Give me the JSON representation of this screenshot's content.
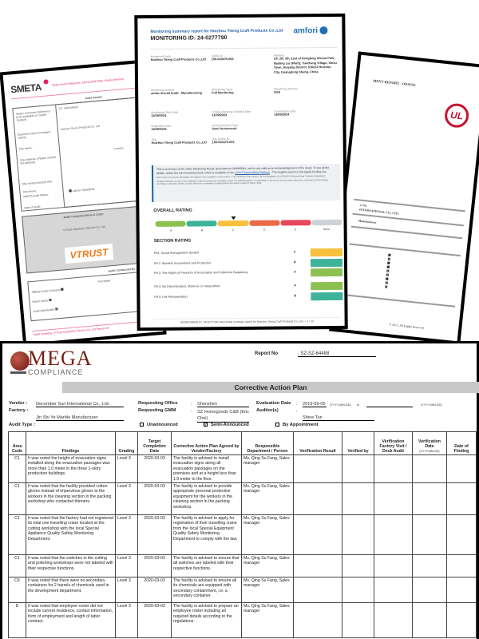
{
  "smeta": {
    "logo": "SMETA",
    "header_text": "Sedex Audit Reference: ZAA1234567890 | Sedex Member",
    "audit_details": "Audit Details",
    "fields": [
      "Sedex Company Reference (only available on Sedex System)",
      "Business name (Company name):",
      "Site name:",
      "Site address: (Please include full address)",
      "Site contact and job title:",
      "Site phone:",
      "SMETA Audit Pillars:",
      "Date of Audit:"
    ],
    "company_ref": "ZC: 406109693",
    "business_name": "Xiamen Stone Products Co. Ltd",
    "country_label": "Country:",
    "pillar": "Labour Standards",
    "audit_company_title": "Audit Company Name & Logo:",
    "audit_company_name": "V-Trust Inspection Service Co. Ltd",
    "audit_company_logo": "VTRUST",
    "audit_conducted": "Audit Conducted By",
    "conducted_rows": [
      "Affiliate Audit Company",
      "Brand owner",
      "Audit stakeholder"
    ],
    "purchaser": "Purchaser",
    "footer": "Audit company: V-Trust Inspection Service Co. Ltd   Report ref"
  },
  "ul": {
    "title": "MENT REPORT - ONSITE",
    "logo": "UL",
    "line1": "s, Inc.",
    "line2": "INTERNATIONAL CO., LTD.",
    "line3": "Manufacturer",
    "checklist": [
      true,
      false,
      true,
      true,
      false,
      false,
      true,
      false,
      false
    ],
    "copyright": "© 2015. All Rights Reserved"
  },
  "amfori": {
    "title": "Monitoring summary report for Huizhou Yiteng Craft Products Co.,Ltd",
    "monitoring_id": "MONITORING ID: 24-0277790",
    "logo": "amfori",
    "fields": [
      {
        "label": "Monitored Party",
        "value": "Huizhou Yiteng Craft Products Co.,Ltd"
      },
      {
        "label": "amfori ID",
        "value": "156-030475-000"
      },
      {
        "label": "Address",
        "value": "1/F, 2/F, 3/F, East of Rongfeng Zhixun Park, Nanling Lei (Plant), Yuechang Village, Xinxu Town, Huiyang District, 516223 Huizhou City, Guangdong Sheng, China"
      },
      {
        "label": "Monitoring Activity",
        "value": "amfori Social Audit - Manufacturing"
      },
      {
        "label": "Monitoring Type",
        "value": "Full Monitoring"
      },
      {
        "label": "Monitoring Partner",
        "value": "SGS"
      },
      {
        "label": "Monitoring Start Date",
        "value": "11/09/2024"
      },
      {
        "label": "Closing Meeting Finished Date",
        "value": "11/09/2024"
      },
      {
        "label": "Submission Date",
        "value": "18/09/2024"
      },
      {
        "label": "Expiration Date",
        "value": "18/09/2025"
      },
      {
        "label": "Announcement Type",
        "value": "Semi Announced"
      },
      {
        "label": "Site",
        "value": "Huizhou Yiteng Craft Products Co.,Ltd"
      },
      {
        "label": "Site amfori ID",
        "value": "156-030475-002"
      }
    ],
    "info_text": "This is an extract of the online Monitoring Result, generated on 20/09/2024, and is only valid as an acknowledgement of the result. To see all the details, review the full monitoring result, which is available on the",
    "info_link": "amfori Sustainability Platform",
    "info_text2": "- The English version is the legally binding one.",
    "disclaimer1": "amfori does not assume any liability with regard to the compliance of this extract, or any versions of this extract, with the Regulation (EU) 2016/679 (General Data Protection Regulation).",
    "disclaimer2": "All rights reserved. No part of this publication may be reproduced, translated, stored in a retrieval system, or transmitted, in any form or by any means electronic, mechanical, photocopying, recording or otherwise, be lent, re-sold, hired out or otherwise circulated without the amfori consent © amfori, 2024",
    "overall_rating_title": "OVERALL RATING",
    "rating_scale": [
      {
        "label": "A",
        "color": "#8cc152"
      },
      {
        "label": "B",
        "color": "#3fb39a"
      },
      {
        "label": "C",
        "color": "#f8c03c"
      },
      {
        "label": "D",
        "color": "#ed6a47"
      },
      {
        "label": "E",
        "color": "#e8485c"
      },
      {
        "label": "None",
        "color": "#cfd3d8"
      }
    ],
    "overall_rating": "C",
    "section_rating_title": "SECTION RATING",
    "sections": [
      {
        "name": "PA1: Social Management System",
        "grade": "C",
        "color": "#f8c03c"
      },
      {
        "name": "PA 2: Workers Involvement and Protection",
        "grade": "B",
        "color": "#3fb39a"
      },
      {
        "name": "PA 3: The Rights of Freedom of Association and Collective Bargaining",
        "grade": "A",
        "color": "#8cc152"
      },
      {
        "name": "PA 4: No Discrimination, Violence or Harassment",
        "grade": "A",
        "color": "#8cc152"
      },
      {
        "name": "PA 5: Fair Remuneration",
        "grade": "B",
        "color": "#3fb39a"
      }
    ],
    "footer": "MONITORING ID: 24-0277790  |  Monitoring summary report for Huizhou Yiteng Craft Products Co.,Ltd  —  1 / 13"
  },
  "omega": {
    "logo_main": "MEGA",
    "logo_sub": "COMPLIANCE",
    "report_no_label": "Report No",
    "report_no": ": SZ-SZ-64488",
    "title": "Corrective Action Plan",
    "vendor_label": "Vendor :",
    "vendor": "December Sun International Co., Ltd.",
    "factory_label": "Factory :",
    "factory": "Jin Shi Ye Marble Manufacturer",
    "audit_type_label": "Audit Type :",
    "req_office_label": "Requesting Office",
    "req_office": "Shenzhen",
    "req_gmm_label": "Requesting GMM",
    "req_gmm": "SZ Homegoods C&B (Eric Choi)",
    "eval_date_label": "Evaluation Date",
    "eval_date": "2019-09-05",
    "date_format": "(YYYY-MM-DD)",
    "to": "to",
    "auditors_label": "Auditor(s)",
    "auditors": "Shine Tan",
    "audit_types": [
      {
        "label": "Unannounced",
        "checked": false
      },
      {
        "label": "Semi-Announced",
        "checked": true
      },
      {
        "label": "By Appointment",
        "checked": false
      }
    ],
    "columns": [
      "Area Code",
      "Findings",
      "Grading",
      "Target Completion Date",
      "Corrective Action Plan Agreed by Vendor/Factory",
      "Responsible Department / Person",
      "Verification Result",
      "Verified by",
      "Verification Factory Visit / Desk Audit",
      "Verification Date",
      "Date of Finding"
    ],
    "verification_date_unit": "(YYYY-MM-DD)",
    "rows": [
      {
        "area": "C1",
        "finding": "It was noted the height of evacuation signs installed along the evacuation passages was more than 1.0 meter in the three 1-story production buildings.",
        "grading": "Level 3",
        "target": "2020-03-03",
        "cap": "The facility is advised to install evacuation signs along all evacuation passages on the premises and at a height less than 1.0 meter to the floor.",
        "responsible": "Ms. Qing Su Fang, Sales manager"
      },
      {
        "area": "C1",
        "finding": "It was noted that the facility provided cotton gloves instead of impervious gloves to the workers in the cleaning section in the packing workshop who contacted thinners.",
        "grading": "Level 3",
        "target": "2020-03-03",
        "cap": "The facility is advised to provide appropriate personal protective equipment for the workers in the cleaning section in the packing workshop.",
        "responsible": "Ms. Qing Su Fang, Sales manager"
      },
      {
        "area": "C1",
        "finding": "It was noted that the factory had not registered its total one travelling crane located at the cutting workshop with the local Special Appliance Quality Safety Monitoring Department.",
        "grading": "Level 3",
        "target": "2020-03-03",
        "cap": "The facility is advised to apply for registration of their travelling crane from the local Special Equipment Quality Safety Monitoring Department to comply with the law.",
        "responsible": "Ms. Qing Su Fang, Sales manager"
      },
      {
        "area": "C1",
        "finding": "It was noted that the switches in the cutting and polishing workshops were not labeled with their respective functions.",
        "grading": "Level 3",
        "target": "2020-03-03",
        "cap": "The facility is advised to ensure that all switches are labeled with their respective functions.",
        "responsible": "Ms. Qing Su Fang, Sales manager"
      },
      {
        "area": "C6",
        "finding": "It was noted that there were no secondary containers for 2 barrels of chemicals used in the development department.",
        "grading": "Level 3",
        "target": "2020-03-03",
        "cap": "The facility is advised to ensure all its chemicals are equipped with secondary containment, i.e. a secondary container.",
        "responsible": "Ms. Qing Su Fang, Sales manager"
      },
      {
        "area": "D",
        "finding": "It was noted that employee roster did not include current residence, contact information, form of employment and length of labor contract.",
        "grading": "Level 3",
        "target": "2020-03-03",
        "cap": "The facility is advised to prepare an employee roster including all required details according to the regulations.",
        "responsible": "Ms. Qing Su Fang, Sales manager"
      }
    ]
  }
}
